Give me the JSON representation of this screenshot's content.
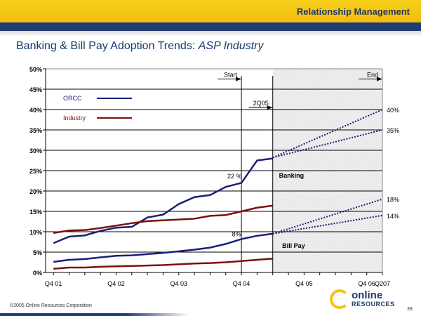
{
  "header": {
    "section": "Relationship Management",
    "title_main": "Banking & Bill Pay Adoption Trends:",
    "title_italic": "ASP Industry"
  },
  "footer": {
    "copyright": "©2005 Online Resources Corporation",
    "page": "39",
    "logo_line1": "online",
    "logo_line2": "RESOURCES"
  },
  "colors": {
    "orcc": "#1a1f78",
    "industry": "#7a1010",
    "projection": "#1a1f78"
  },
  "chart_data": {
    "type": "line",
    "title": "Banking & Bill Pay Adoption Trends: ASP Industry",
    "ylim": [
      0,
      50
    ],
    "y_ticks": [
      "0%",
      "5%",
      "10%",
      "15%",
      "20%",
      "25%",
      "30%",
      "35%",
      "40%",
      "45%",
      "50%"
    ],
    "x_labels": [
      "Q4 01",
      "Q4 02",
      "Q4 03",
      "Q4 04",
      "Q4 05",
      "Q4 06",
      "Q207"
    ],
    "x_label_index": [
      0,
      4,
      8,
      12,
      16,
      20,
      21
    ],
    "x_range": [
      -0.5,
      21
    ],
    "legend": [
      {
        "name": "ORCC",
        "color": "#1a1f78"
      },
      {
        "name": "Industry",
        "color": "#7a1010"
      }
    ],
    "legend_position": "top-left",
    "series": [
      {
        "name": "ORCC Banking",
        "color": "#1a1f78",
        "x": [
          0,
          1,
          2,
          3,
          4,
          5,
          6,
          7,
          8,
          9,
          10,
          11,
          12,
          13,
          14
        ],
        "values": [
          7.2,
          8.8,
          9.1,
          10.2,
          11,
          11.2,
          13.5,
          14.2,
          16.8,
          18.5,
          19,
          21,
          22,
          27.5,
          28
        ]
      },
      {
        "name": "Industry Banking",
        "color": "#7a1010",
        "x": [
          0,
          1,
          2,
          3,
          4,
          5,
          6,
          7,
          8,
          9,
          10,
          11,
          12,
          13,
          14
        ],
        "values": [
          9.7,
          10.3,
          10.4,
          10.9,
          11.5,
          12.1,
          12.6,
          12.8,
          13.0,
          13.2,
          13.9,
          14.1,
          15.0,
          15.9,
          16.4
        ]
      },
      {
        "name": "ORCC Bill Pay",
        "color": "#1a1f78",
        "x": [
          0,
          1,
          2,
          3,
          4,
          5,
          6,
          7,
          8,
          9,
          10,
          11,
          12,
          13,
          14
        ],
        "values": [
          2.6,
          3.1,
          3.3,
          3.7,
          4.1,
          4.2,
          4.5,
          4.8,
          5.2,
          5.6,
          6.1,
          7.0,
          8.2,
          9.0,
          9.5
        ]
      },
      {
        "name": "Industry Bill Pay",
        "color": "#7a1010",
        "x": [
          0,
          1,
          2,
          3,
          4,
          5,
          6,
          7,
          8,
          9,
          10,
          11,
          12,
          13,
          14
        ],
        "values": [
          0.9,
          1.2,
          1.2,
          1.4,
          1.5,
          1.6,
          1.7,
          1.8,
          2.0,
          2.2,
          2.3,
          2.5,
          2.8,
          3.1,
          3.4
        ]
      }
    ],
    "projections": [
      {
        "name": "Banking high",
        "from": [
          14,
          28.2
        ],
        "to": [
          21,
          40
        ],
        "label": "40%"
      },
      {
        "name": "Banking low",
        "from": [
          14,
          28.2
        ],
        "to": [
          21,
          35
        ],
        "label": "35%"
      },
      {
        "name": "Bill Pay high",
        "from": [
          14,
          9.5
        ],
        "to": [
          21,
          18
        ],
        "label": "18%"
      },
      {
        "name": "Bill Pay low",
        "from": [
          14,
          9.5
        ],
        "to": [
          21,
          14
        ],
        "label": "14%"
      }
    ],
    "projection_region_start": 14,
    "annotations": [
      {
        "text": "Start",
        "x": 12,
        "y": 47.5,
        "type": "arrow"
      },
      {
        "text": "End",
        "x": 21,
        "y": 47.5,
        "type": "arrow"
      },
      {
        "text": "2Q05",
        "x": 14,
        "y": 40.5,
        "type": "arrow"
      },
      {
        "text": "22 %",
        "x": 11.1,
        "y": 23.1
      },
      {
        "text": "8%",
        "x": 11.4,
        "y": 8.9
      },
      {
        "text": "Banking",
        "x": 14.4,
        "y": 23.3,
        "bold": true
      },
      {
        "text": "Bill Pay",
        "x": 14.6,
        "y": 6.0,
        "bold": true
      }
    ],
    "vlines_at": [
      12,
      14
    ],
    "grid": true
  }
}
